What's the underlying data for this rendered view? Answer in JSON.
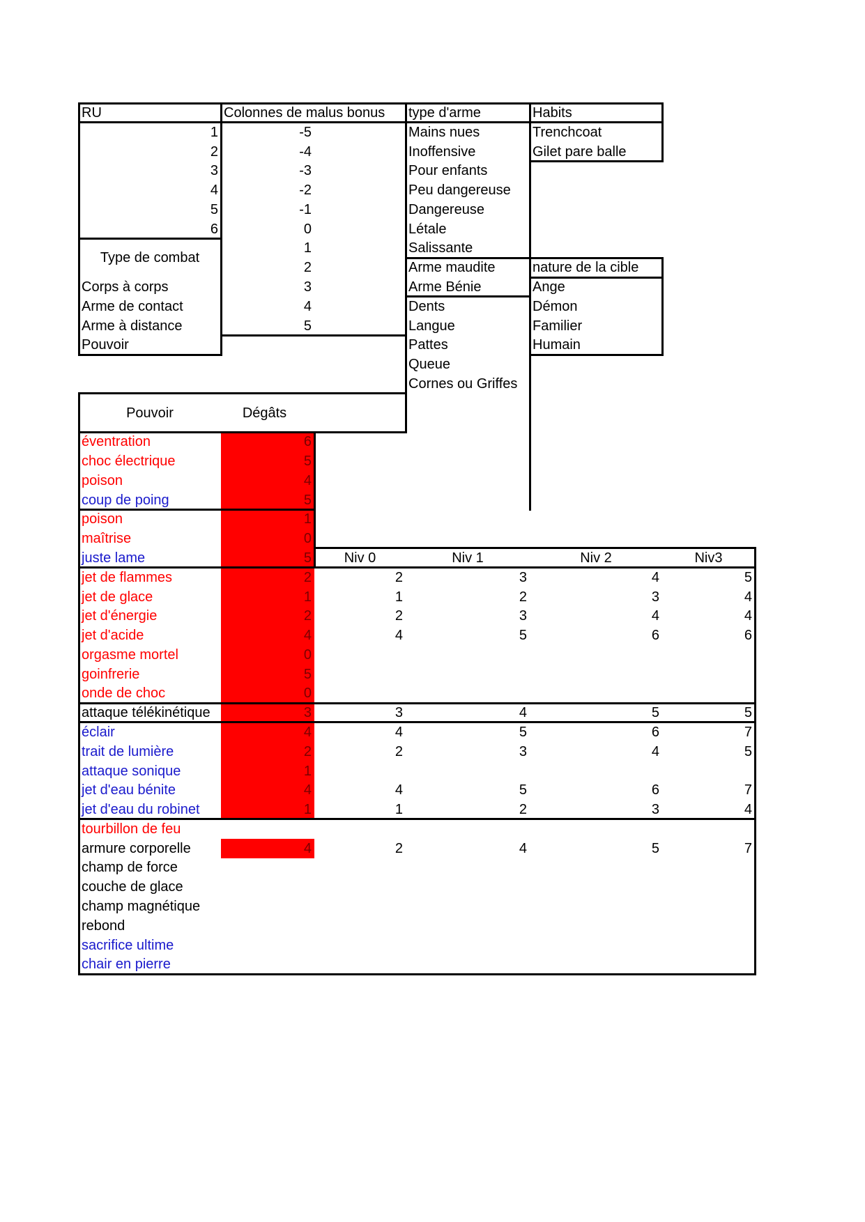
{
  "palette": {
    "red": "#ff0000",
    "blue": "#1a1acc",
    "black": "#000000",
    "damage_fill": "#ff0000",
    "damage_text": "#7a0000"
  },
  "ru": {
    "header": "RU",
    "values": [
      "1",
      "2",
      "3",
      "4",
      "5",
      "6"
    ]
  },
  "malus_bonus": {
    "header": "Colonnes de malus bonus",
    "values": [
      "-5",
      "-4",
      "-3",
      "-2",
      "-1",
      "0",
      "1",
      "2",
      "3",
      "4",
      "5"
    ]
  },
  "combat_types": {
    "title": "Type de combat",
    "items": [
      "Corps à corps",
      "Arme de contact",
      "Arme à distance",
      "Pouvoir"
    ]
  },
  "weapon_types": {
    "header": "type d'arme",
    "danger_levels": [
      "Mains nues",
      "Inoffensive",
      "Pour enfants",
      "Peu dangereuse",
      "Dangereuse",
      "Létale",
      "Salissante"
    ],
    "special": [
      "Arme maudite",
      "Arme Bénie"
    ],
    "natural": [
      "Dents",
      "Langue",
      "Pattes",
      "Queue",
      "Cornes ou Griffes"
    ]
  },
  "habits": {
    "header": "Habits",
    "items": [
      "Trenchcoat",
      "Gilet pare balle"
    ]
  },
  "target_nature": {
    "header": "nature de la cible",
    "items": [
      "Ange",
      "Démon",
      "Familier",
      "Humain"
    ]
  },
  "powers": {
    "power_header": "Pouvoir",
    "damage_header": "Dégâts",
    "level_headers": [
      "Niv 0",
      "Niv 1",
      "Niv 2",
      "Niv3"
    ],
    "groups": [
      [
        {
          "name": "éventration",
          "color": "red",
          "damage": "6",
          "levels": []
        },
        {
          "name": "choc électrique",
          "color": "red",
          "damage": "5",
          "levels": []
        },
        {
          "name": "poison",
          "color": "red",
          "damage": "4",
          "levels": []
        },
        {
          "name": "coup de poing",
          "color": "blue",
          "damage": "5",
          "levels": []
        }
      ],
      [
        {
          "name": "poison",
          "color": "red",
          "damage": "1",
          "levels": []
        },
        {
          "name": "maîtrise",
          "color": "red",
          "damage": "0",
          "levels": []
        },
        {
          "name": "juste lame",
          "color": "blue",
          "damage": "5",
          "levels": []
        }
      ],
      [
        {
          "name": "jet de flammes",
          "color": "red",
          "damage": "2",
          "levels": [
            "2",
            "3",
            "4",
            "5"
          ]
        },
        {
          "name": "jet de glace",
          "color": "red",
          "damage": "1",
          "levels": [
            "1",
            "2",
            "3",
            "4"
          ]
        },
        {
          "name": "jet d'énergie",
          "color": "red",
          "damage": "2",
          "levels": [
            "2",
            "3",
            "4",
            "4"
          ]
        },
        {
          "name": "jet d'acide",
          "color": "red",
          "damage": "4",
          "levels": [
            "4",
            "5",
            "6",
            "6"
          ]
        },
        {
          "name": "orgasme mortel",
          "color": "red",
          "damage": "0",
          "levels": []
        },
        {
          "name": "goinfrerie",
          "color": "red",
          "damage": "5",
          "levels": []
        },
        {
          "name": "onde de choc",
          "color": "red",
          "damage": "0",
          "levels": []
        }
      ],
      [
        {
          "name": "attaque télékinétique",
          "color": "black",
          "damage": "3",
          "levels": [
            "3",
            "4",
            "5",
            "5"
          ]
        }
      ],
      [
        {
          "name": "éclair",
          "color": "blue",
          "damage": "4",
          "levels": [
            "4",
            "5",
            "6",
            "7"
          ]
        },
        {
          "name": "trait de lumière",
          "color": "blue",
          "damage": "2",
          "levels": [
            "2",
            "3",
            "4",
            "5"
          ]
        },
        {
          "name": "attaque sonique",
          "color": "blue",
          "damage": "1",
          "levels": []
        },
        {
          "name": "jet d'eau bénite",
          "color": "blue",
          "damage": "4",
          "levels": [
            "4",
            "5",
            "6",
            "7"
          ]
        },
        {
          "name": "jet d'eau du robinet",
          "color": "blue",
          "damage": "1",
          "levels": [
            "1",
            "2",
            "3",
            "4"
          ]
        }
      ],
      [
        {
          "name": "tourbillon de feu",
          "color": "red",
          "damage": null,
          "levels": []
        },
        {
          "name": "armure corporelle",
          "color": "black",
          "damage": "4",
          "levels": [
            "2",
            "4",
            "5",
            "7"
          ]
        },
        {
          "name": "champ de force",
          "color": "black",
          "damage": null,
          "levels": []
        },
        {
          "name": "couche de glace",
          "color": "black",
          "damage": null,
          "levels": []
        },
        {
          "name": "champ magnétique",
          "color": "black",
          "damage": null,
          "levels": []
        },
        {
          "name": "rebond",
          "color": "black",
          "damage": null,
          "levels": []
        },
        {
          "name": "sacrifice ultime",
          "color": "blue",
          "damage": null,
          "levels": []
        },
        {
          "name": "chair en pierre",
          "color": "blue",
          "damage": null,
          "levels": []
        }
      ]
    ]
  }
}
